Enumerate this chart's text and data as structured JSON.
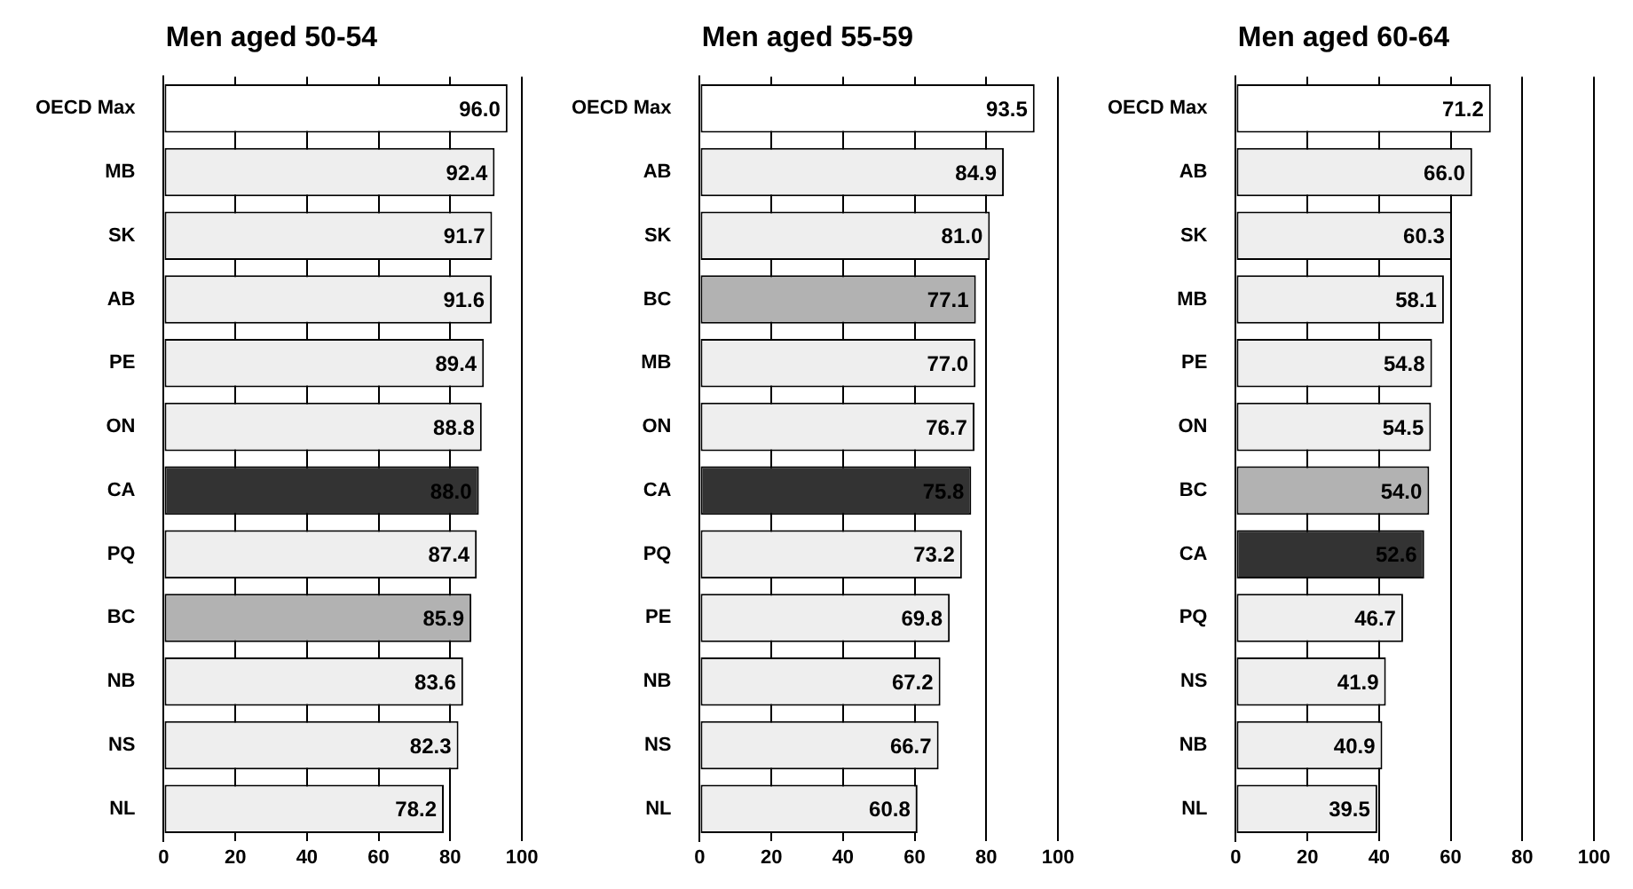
{
  "chart_data": [
    {
      "type": "bar",
      "orientation": "horizontal",
      "title": "Men aged 50-54",
      "categories": [
        "OECD Max",
        "MB",
        "SK",
        "AB",
        "PE",
        "ON",
        "CA",
        "PQ",
        "BC",
        "NB",
        "NS",
        "NL"
      ],
      "values": [
        96.0,
        92.4,
        91.7,
        91.6,
        89.4,
        88.8,
        88.0,
        87.4,
        85.9,
        83.6,
        82.3,
        78.2
      ],
      "value_labels": [
        "96.0",
        "92.4",
        "91.7",
        "91.6",
        "89.4",
        "88.8",
        "88.0",
        "87.4",
        "85.9",
        "83.6",
        "82.3",
        "78.2"
      ],
      "colors": [
        "#ffffff",
        "#eeeeee",
        "#eeeeee",
        "#eeeeee",
        "#eeeeee",
        "#eeeeee",
        "#333333",
        "#eeeeee",
        "#b2b2b2",
        "#eeeeee",
        "#eeeeee",
        "#eeeeee"
      ],
      "xlim": [
        0,
        100
      ],
      "xticks": [
        0,
        20,
        40,
        60,
        80,
        100
      ],
      "grid": "x",
      "legend": false
    },
    {
      "type": "bar",
      "orientation": "horizontal",
      "title": "Men aged 55-59",
      "categories": [
        "OECD Max",
        "AB",
        "SK",
        "BC",
        "MB",
        "ON",
        "CA",
        "PQ",
        "PE",
        "NB",
        "NS",
        "NL"
      ],
      "values": [
        93.5,
        84.9,
        81.0,
        77.1,
        77.0,
        76.7,
        75.8,
        73.2,
        69.8,
        67.2,
        66.7,
        60.8
      ],
      "value_labels": [
        "93.5",
        "84.9",
        "81.0",
        "77.1",
        "77.0",
        "76.7",
        "75.8",
        "73.2",
        "69.8",
        "67.2",
        "66.7",
        "60.8"
      ],
      "colors": [
        "#ffffff",
        "#eeeeee",
        "#eeeeee",
        "#b2b2b2",
        "#eeeeee",
        "#eeeeee",
        "#333333",
        "#eeeeee",
        "#eeeeee",
        "#eeeeee",
        "#eeeeee",
        "#eeeeee"
      ],
      "xlim": [
        0,
        100
      ],
      "xticks": [
        0,
        20,
        40,
        60,
        80,
        100
      ],
      "grid": "x",
      "legend": false
    },
    {
      "type": "bar",
      "orientation": "horizontal",
      "title": "Men aged 60-64",
      "categories": [
        "OECD Max",
        "AB",
        "SK",
        "MB",
        "PE",
        "ON",
        "BC",
        "CA",
        "PQ",
        "NS",
        "NB",
        "NL"
      ],
      "values": [
        71.2,
        66.0,
        60.3,
        58.1,
        54.8,
        54.5,
        54.0,
        52.6,
        46.7,
        41.9,
        40.9,
        39.5
      ],
      "value_labels": [
        "71.2",
        "66.0",
        "60.3",
        "58.1",
        "54.8",
        "54.5",
        "54.0",
        "52.6",
        "46.7",
        "41.9",
        "40.9",
        "39.5"
      ],
      "colors": [
        "#ffffff",
        "#eeeeee",
        "#eeeeee",
        "#eeeeee",
        "#eeeeee",
        "#eeeeee",
        "#b2b2b2",
        "#333333",
        "#eeeeee",
        "#eeeeee",
        "#eeeeee",
        "#eeeeee"
      ],
      "xlim": [
        0,
        100
      ],
      "xticks": [
        0,
        20,
        40,
        60,
        80,
        100
      ],
      "grid": "x",
      "legend": false
    }
  ]
}
